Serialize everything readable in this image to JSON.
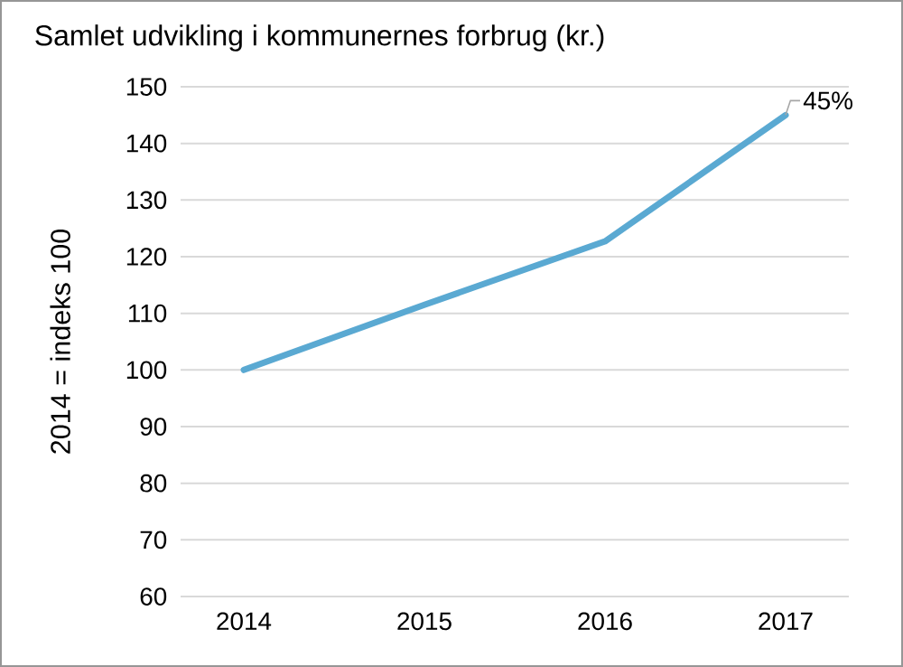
{
  "chart_data": {
    "type": "line",
    "title": "Samlet udvikling i kommunernes forbrug (kr.)",
    "ylabel": "2014 = indeks 100",
    "categories": [
      "2014",
      "2015",
      "2016",
      "2017"
    ],
    "series": [
      {
        "color": "#5aa9d2",
        "values": [
          100,
          111.5,
          122.7,
          145
        ]
      }
    ],
    "ylim": [
      60,
      150
    ],
    "yticks": [
      60,
      70,
      80,
      90,
      100,
      110,
      120,
      130,
      140,
      150
    ],
    "grid": "y",
    "marker": "none",
    "line_style": "solid",
    "annotations": [
      {
        "text": "45%",
        "x": "2017",
        "y": 145
      }
    ]
  }
}
